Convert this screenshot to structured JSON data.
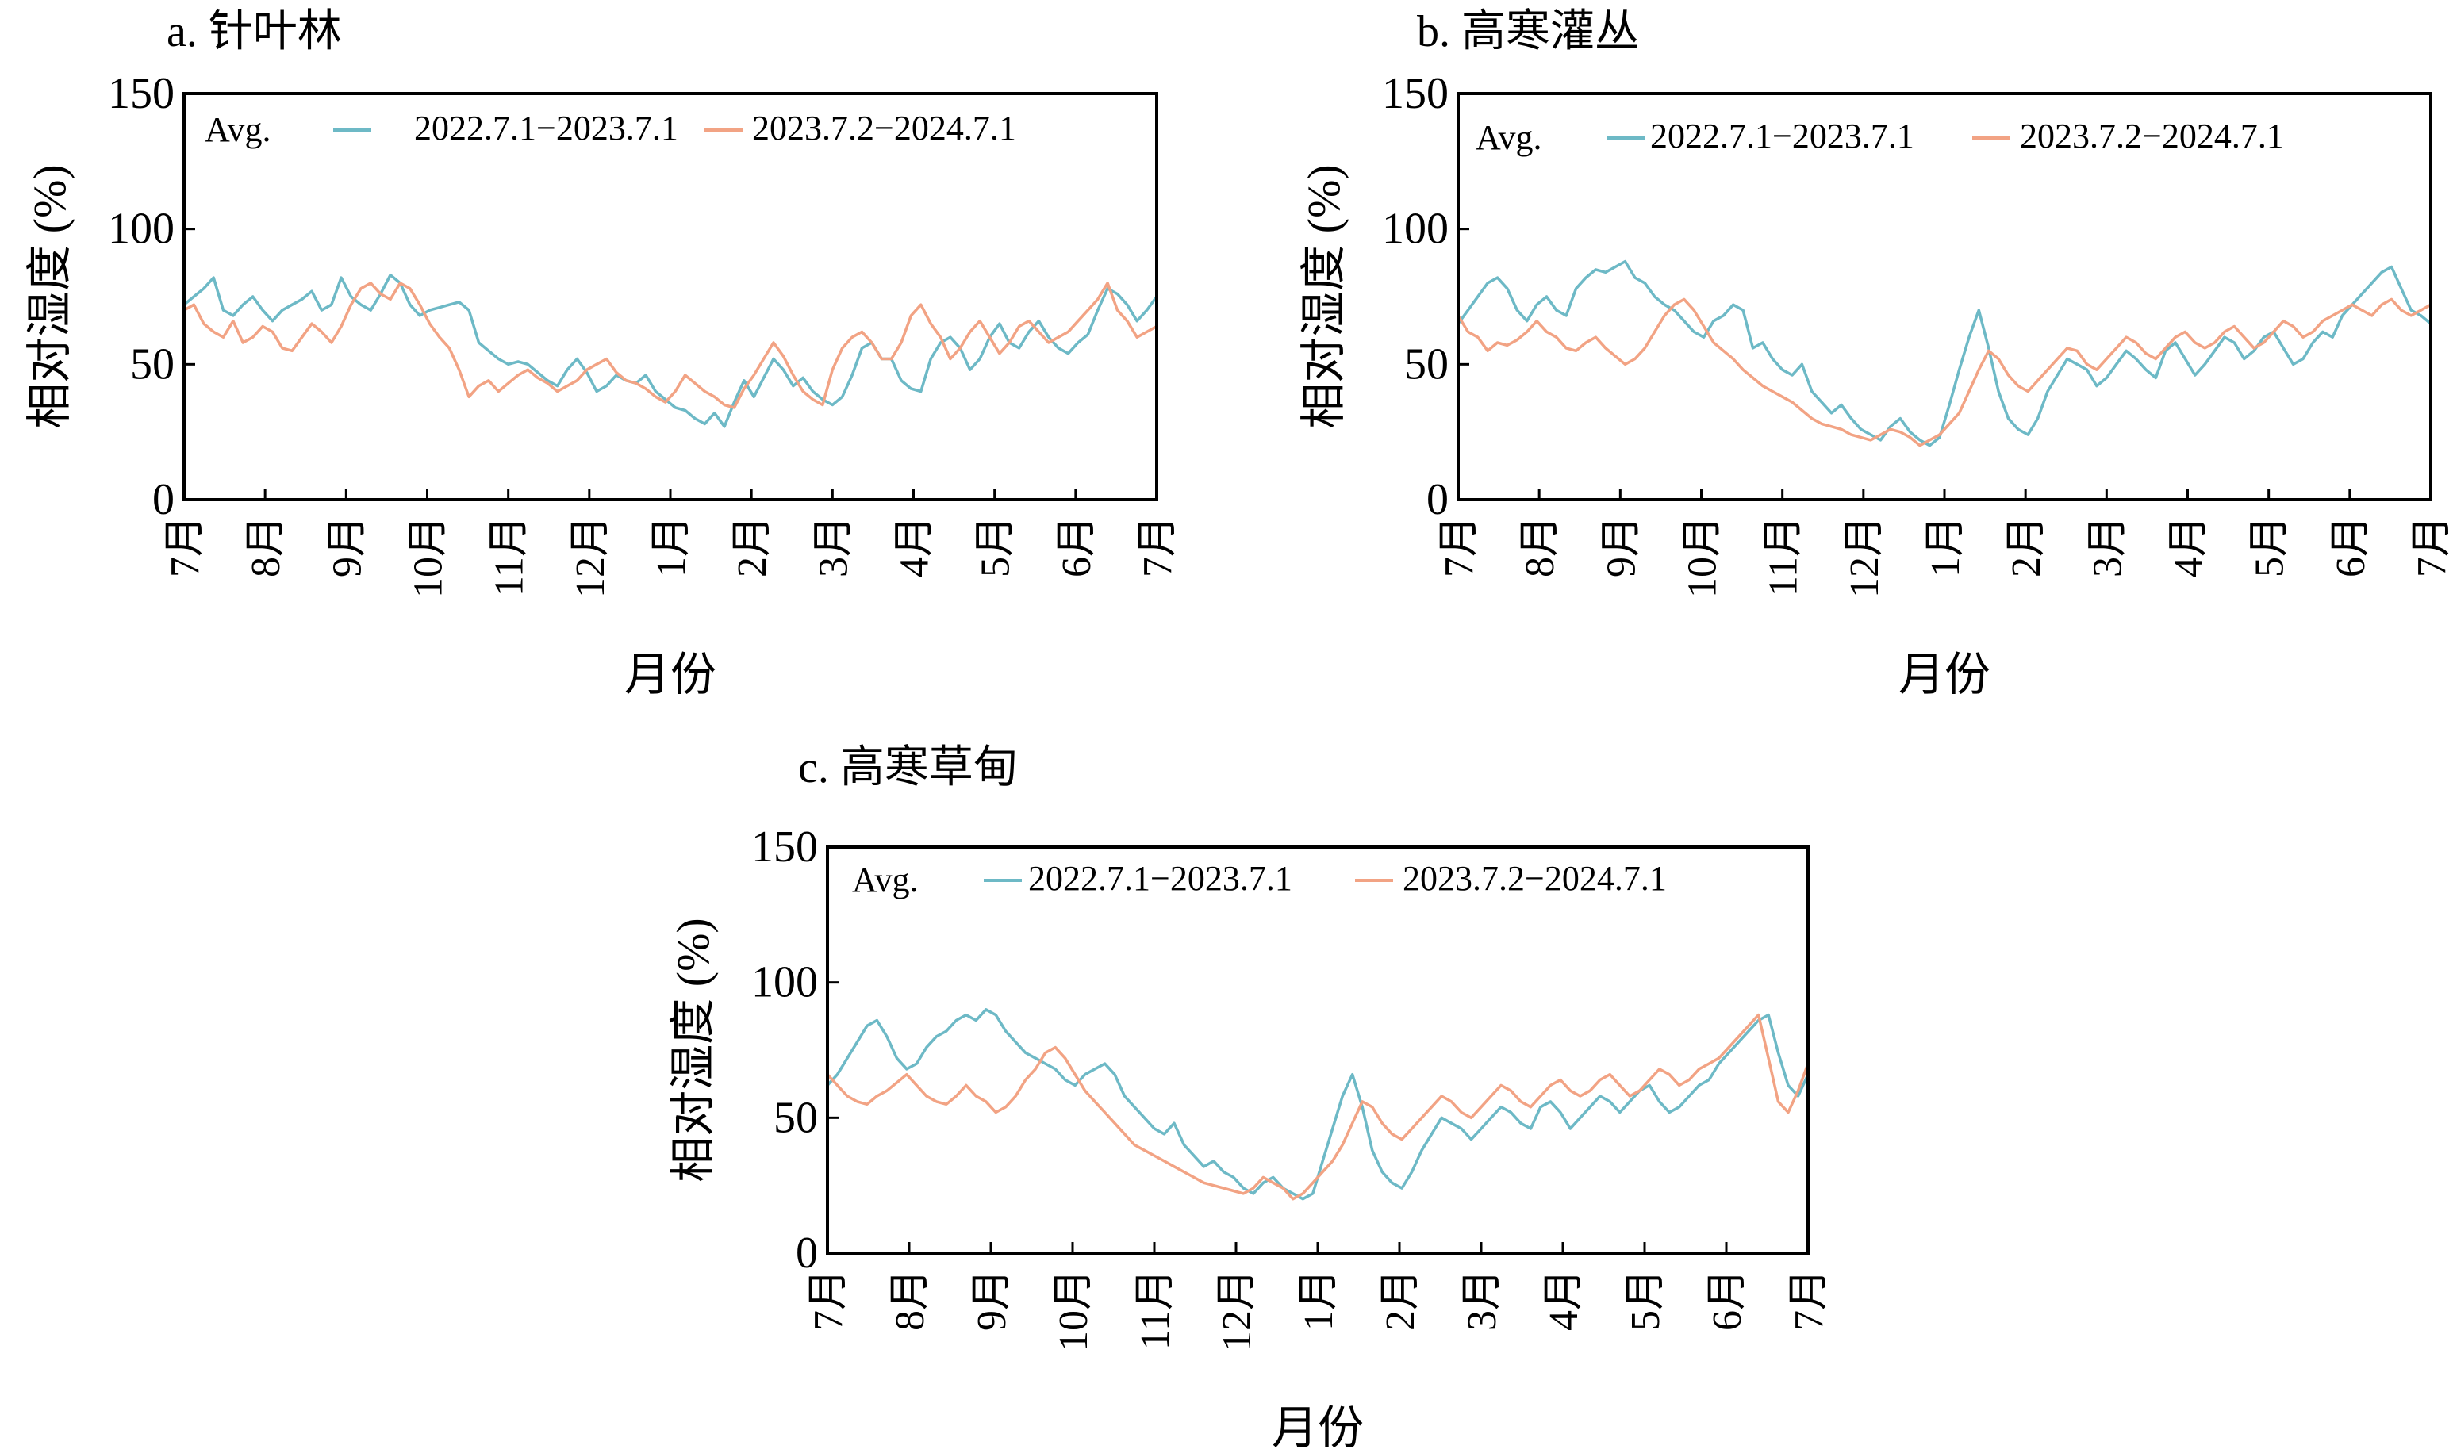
{
  "colors": {
    "series1": "#6db9c6",
    "series2": "#f2a384",
    "axis": "#000000"
  },
  "charts": [
    {
      "title": "a. 针叶林",
      "ylabel": "相对湿度 (%)",
      "xlabel": "月份",
      "legend_label": "Avg.",
      "series_names": [
        "2022.7.1−2023.7.1",
        "2023.7.2−2024.7.1"
      ]
    },
    {
      "title": "b. 高寒灌丛",
      "ylabel": "相对湿度 (%)",
      "xlabel": "月份",
      "legend_label": "Avg.",
      "series_names": [
        "2022.7.1−2023.7.1",
        "2023.7.2−2024.7.1"
      ]
    },
    {
      "title": "c. 高寒草甸",
      "ylabel": "相对湿度 (%)",
      "xlabel": "月份",
      "legend_label": "Avg.",
      "series_names": [
        "2022.7.1−2023.7.1",
        "2023.7.2−2024.7.1"
      ]
    }
  ],
  "chart_data": [
    {
      "type": "line",
      "title": "a. 针叶林",
      "xlabel": "月份",
      "ylabel": "相对湿度 (%)",
      "x_ticks": [
        "7月",
        "8月",
        "9月",
        "10月",
        "11月",
        "12月",
        "1月",
        "2月",
        "3月",
        "4月",
        "5月",
        "6月",
        "7月"
      ],
      "y_ticks": [
        "0",
        "50",
        "100",
        "150"
      ],
      "ylim": [
        0,
        150
      ],
      "grid": false,
      "legend_placement": "top-left",
      "series": [
        {
          "name": "2022.7.1−2023.7.1",
          "values": [
            72,
            75,
            78,
            82,
            70,
            68,
            72,
            75,
            70,
            66,
            70,
            72,
            74,
            77,
            70,
            72,
            82,
            75,
            72,
            70,
            76,
            83,
            80,
            72,
            68,
            70,
            71,
            72,
            73,
            70,
            58,
            55,
            52,
            50,
            51,
            50,
            47,
            44,
            42,
            48,
            52,
            47,
            40,
            42,
            46,
            44,
            43,
            46,
            40,
            37,
            34,
            33,
            30,
            28,
            32,
            27,
            36,
            44,
            38,
            45,
            52,
            48,
            42,
            45,
            40,
            37,
            35,
            38,
            46,
            56,
            58,
            52,
            52,
            44,
            41,
            40,
            52,
            58,
            60,
            56,
            48,
            52,
            60,
            65,
            58,
            56,
            62,
            66,
            60,
            56,
            54,
            58,
            61,
            70,
            78,
            76,
            72,
            66,
            70,
            75
          ]
        },
        {
          "name": "2023.7.2−2024.7.1",
          "values": [
            70,
            72,
            65,
            62,
            60,
            66,
            58,
            60,
            64,
            62,
            56,
            55,
            60,
            65,
            62,
            58,
            64,
            72,
            78,
            80,
            76,
            74,
            80,
            78,
            72,
            65,
            60,
            56,
            48,
            38,
            42,
            44,
            40,
            43,
            46,
            48,
            45,
            43,
            40,
            42,
            44,
            48,
            50,
            52,
            47,
            44,
            43,
            41,
            38,
            36,
            40,
            46,
            43,
            40,
            38,
            35,
            34,
            41,
            46,
            52,
            58,
            53,
            46,
            40,
            37,
            35,
            48,
            56,
            60,
            62,
            58,
            52,
            52,
            58,
            68,
            72,
            65,
            60,
            52,
            56,
            62,
            66,
            60,
            54,
            58,
            64,
            66,
            62,
            58,
            60,
            62,
            66,
            70,
            74,
            80,
            70,
            66,
            60,
            62,
            64
          ]
        }
      ]
    },
    {
      "type": "line",
      "title": "b. 高寒灌丛",
      "xlabel": "月份",
      "ylabel": "相对湿度 (%)",
      "x_ticks": [
        "7月",
        "8月",
        "9月",
        "10月",
        "11月",
        "12月",
        "1月",
        "2月",
        "3月",
        "4月",
        "5月",
        "6月",
        "7月"
      ],
      "y_ticks": [
        "0",
        "50",
        "100",
        "150"
      ],
      "ylim": [
        0,
        150
      ],
      "grid": false,
      "legend_placement": "top-left",
      "series": [
        {
          "name": "2022.7.1−2023.7.1",
          "values": [
            65,
            70,
            75,
            80,
            82,
            78,
            70,
            66,
            72,
            75,
            70,
            68,
            78,
            82,
            85,
            84,
            86,
            88,
            82,
            80,
            75,
            72,
            70,
            66,
            62,
            60,
            66,
            68,
            72,
            70,
            56,
            58,
            52,
            48,
            46,
            50,
            40,
            36,
            32,
            35,
            30,
            26,
            24,
            22,
            27,
            30,
            25,
            22,
            20,
            23,
            35,
            48,
            60,
            70,
            56,
            40,
            30,
            26,
            24,
            30,
            40,
            46,
            52,
            50,
            48,
            42,
            45,
            50,
            55,
            52,
            48,
            45,
            55,
            58,
            52,
            46,
            50,
            55,
            60,
            58,
            52,
            55,
            60,
            62,
            56,
            50,
            52,
            58,
            62,
            60,
            68,
            72,
            76,
            80,
            84,
            86,
            78,
            70,
            68,
            65
          ]
        },
        {
          "name": "2023.7.2−2024.7.1",
          "values": [
            68,
            62,
            60,
            55,
            58,
            57,
            59,
            62,
            66,
            62,
            60,
            56,
            55,
            58,
            60,
            56,
            53,
            50,
            52,
            56,
            62,
            68,
            72,
            74,
            70,
            64,
            58,
            55,
            52,
            48,
            45,
            42,
            40,
            38,
            36,
            33,
            30,
            28,
            27,
            26,
            24,
            23,
            22,
            24,
            26,
            25,
            23,
            20,
            22,
            24,
            28,
            32,
            40,
            48,
            55,
            52,
            46,
            42,
            40,
            44,
            48,
            52,
            56,
            55,
            50,
            48,
            52,
            56,
            60,
            58,
            54,
            52,
            56,
            60,
            62,
            58,
            56,
            58,
            62,
            64,
            60,
            56,
            58,
            62,
            66,
            64,
            60,
            62,
            66,
            68,
            70,
            72,
            70,
            68,
            72,
            74,
            70,
            68,
            70,
            72
          ]
        }
      ]
    },
    {
      "type": "line",
      "title": "c. 高寒草甸",
      "xlabel": "月份",
      "ylabel": "相对湿度 (%)",
      "x_ticks": [
        "7月",
        "8月",
        "9月",
        "10月",
        "11月",
        "12月",
        "1月",
        "2月",
        "3月",
        "4月",
        "5月",
        "6月",
        "7月"
      ],
      "y_ticks": [
        "0",
        "50",
        "100",
        "150"
      ],
      "ylim": [
        0,
        150
      ],
      "grid": false,
      "legend_placement": "top-left",
      "series": [
        {
          "name": "2022.7.1−2023.7.1",
          "values": [
            62,
            66,
            72,
            78,
            84,
            86,
            80,
            72,
            68,
            70,
            76,
            80,
            82,
            86,
            88,
            86,
            90,
            88,
            82,
            78,
            74,
            72,
            70,
            68,
            64,
            62,
            66,
            68,
            70,
            66,
            58,
            54,
            50,
            46,
            44,
            48,
            40,
            36,
            32,
            34,
            30,
            28,
            24,
            22,
            26,
            28,
            24,
            22,
            20,
            22,
            34,
            46,
            58,
            66,
            54,
            38,
            30,
            26,
            24,
            30,
            38,
            44,
            50,
            48,
            46,
            42,
            46,
            50,
            54,
            52,
            48,
            46,
            54,
            56,
            52,
            46,
            50,
            54,
            58,
            56,
            52,
            56,
            60,
            62,
            56,
            52,
            54,
            58,
            62,
            64,
            70,
            74,
            78,
            82,
            86,
            88,
            74,
            62,
            58,
            66
          ]
        },
        {
          "name": "2023.7.2−2024.7.1",
          "values": [
            66,
            62,
            58,
            56,
            55,
            58,
            60,
            63,
            66,
            62,
            58,
            56,
            55,
            58,
            62,
            58,
            56,
            52,
            54,
            58,
            64,
            68,
            74,
            76,
            72,
            66,
            60,
            56,
            52,
            48,
            44,
            40,
            38,
            36,
            34,
            32,
            30,
            28,
            26,
            25,
            24,
            23,
            22,
            24,
            28,
            26,
            24,
            20,
            22,
            26,
            30,
            34,
            40,
            48,
            56,
            54,
            48,
            44,
            42,
            46,
            50,
            54,
            58,
            56,
            52,
            50,
            54,
            58,
            62,
            60,
            56,
            54,
            58,
            62,
            64,
            60,
            58,
            60,
            64,
            66,
            62,
            58,
            60,
            64,
            68,
            66,
            62,
            64,
            68,
            70,
            72,
            76,
            80,
            84,
            88,
            72,
            56,
            52,
            60,
            70
          ]
        }
      ]
    }
  ]
}
